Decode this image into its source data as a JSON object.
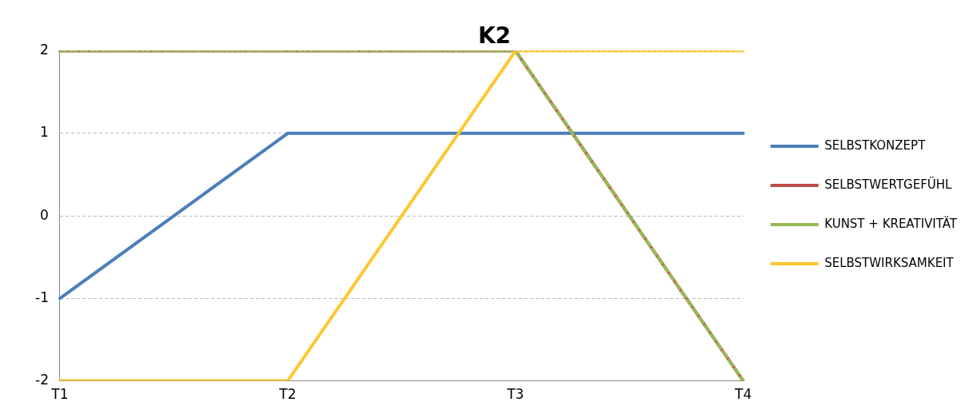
{
  "chart_data": {
    "type": "line",
    "title": "K2",
    "categories": [
      "T1",
      "T2",
      "T3",
      "T4"
    ],
    "series": [
      {
        "name": "SELBSTKONZEPT",
        "color": "#4a7ebb",
        "values": [
          -1,
          1,
          1,
          1
        ]
      },
      {
        "name": "SELBSTWERTGEFÜHL",
        "color": "#be4b48",
        "values": [
          2,
          2,
          2,
          -2
        ]
      },
      {
        "name": "KUNST + KREATIVITÄT",
        "color": "#98b954",
        "values": [
          2,
          2,
          2,
          -2
        ],
        "line_style": "dashed"
      },
      {
        "name": "SELBSTWIRKSAMKEIT",
        "color": "#fdc82f",
        "values": [
          -2,
          -2,
          2,
          2
        ]
      }
    ],
    "ylim": [
      -2,
      2
    ],
    "yticks": [
      -2,
      -1,
      0,
      1,
      2
    ],
    "grid": "y",
    "legend": "right",
    "marker": "none",
    "line_style": "solid"
  }
}
